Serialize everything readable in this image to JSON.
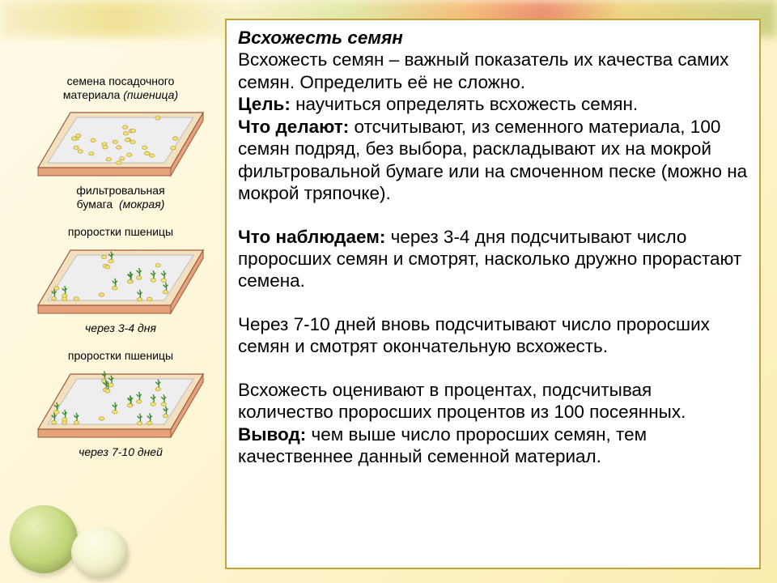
{
  "colors": {
    "frame_border": "#c7a43a",
    "tray_side": "#e6a27a",
    "tray_top": "#f3e0be",
    "tray_inner": "#eeeeee",
    "seed_fill": "#f2e37a",
    "seed_stroke": "#b8a030",
    "sprout": "#3a8a2a",
    "text": "#000000"
  },
  "figures": {
    "fig1": {
      "top_caption_line1": "семена посадочного",
      "top_caption_line2": "материала",
      "top_caption_paren": "(пшеница)",
      "bottom_caption_line1": "фильтровальная",
      "bottom_caption_line2_plain": "бумага",
      "bottom_caption_line2_ital": "(мокрая)",
      "seed_count": 28,
      "sprouts": false
    },
    "fig2": {
      "top_caption": "проростки пшеницы",
      "bottom_caption_ital": "через 3-4 дня",
      "seed_count": 20,
      "sprouts": true,
      "sprout_density": 0.4
    },
    "fig3": {
      "top_caption": "проростки пшеницы",
      "bottom_caption_ital": "через 7-10 дней",
      "seed_count": 20,
      "sprouts": true,
      "sprout_density": 0.9
    }
  },
  "text": {
    "title": "Всхожесть семян",
    "intro": "Всхожесть семян – важный показатель их качества самих семян. Определить её не сложно.",
    "goal_label": "Цель:",
    "goal": " научиться определять всхожесть семян.",
    "do_label": "Что делают:",
    "do": " отсчитывают, из семенного материала, 100 семян подряд, без выбора, раскладывают их на мокрой фильтровальной бумаге или на смоченном песке (можно на мокрой тряпочке).",
    "observe_label": "Что наблюдаем:",
    "observe": " через 3-4 дня подсчитывают число проросших семян и смотрят, насколько дружно прорастают семена.",
    "p4": "Через 7-10 дней вновь подсчитывают число проросших семян и смотрят окончательную всхожесть.",
    "p5": "Всхожесть оценивают в процентах, подсчитывая количество проросших процентов из 100 посеянных.",
    "concl_label": "Вывод:",
    "concl": " чем выше число проросших семян, тем качественнее данный семенной материал."
  }
}
